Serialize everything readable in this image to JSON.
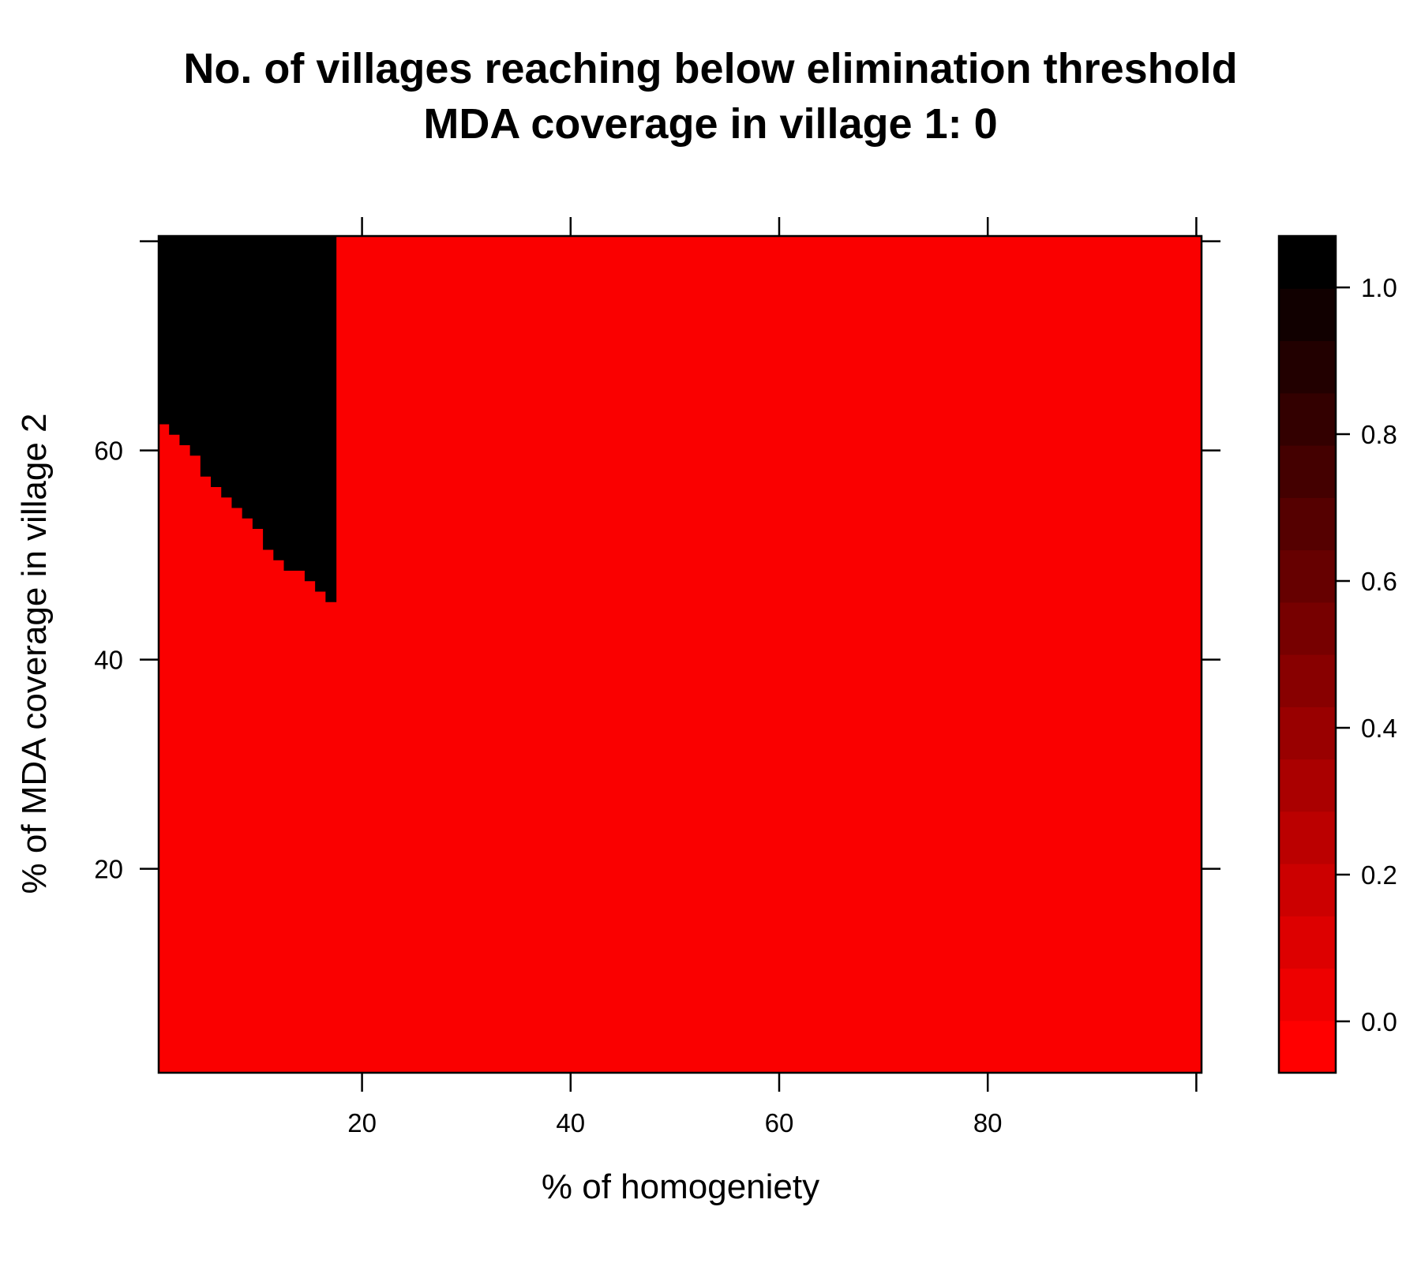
{
  "chart_data": {
    "type": "heatmap",
    "title": "No. of villages reaching below elimination threshold",
    "subtitle": "MDA coverage in village 1: 0",
    "xlabel": "% of homogeniety",
    "ylabel": "% of MDA coverage in village 2",
    "xlim": [
      1,
      100
    ],
    "ylim": [
      1,
      80
    ],
    "x_ticks": [
      20,
      40,
      60,
      80
    ],
    "y_ticks": [
      20,
      40,
      60
    ],
    "x_tick_labels": [
      "20",
      "40",
      "60",
      "80"
    ],
    "y_tick_labels": [
      "20",
      "40",
      "60"
    ],
    "colorbar": {
      "range": [
        -0.07,
        1.07
      ],
      "ticks": [
        0.0,
        0.2,
        0.4,
        0.6,
        0.8,
        1.0
      ],
      "tick_labels": [
        "0.0",
        "0.2",
        "0.4",
        "0.6",
        "0.8",
        "1.0"
      ],
      "levels": 16,
      "low_color": "#ff0000",
      "high_color": "#000000"
    },
    "value_low": 0,
    "value_high": 1,
    "region_value_1_boundary": {
      "homogeneity": [
        1,
        2,
        3,
        4,
        5,
        6,
        7,
        8,
        9,
        10,
        11,
        12,
        13,
        14,
        15,
        16,
        17
      ],
      "min_coverage": [
        63,
        62,
        61,
        60,
        58,
        57,
        56,
        55,
        54,
        53,
        51,
        50,
        49,
        49,
        48,
        47,
        46
      ]
    }
  }
}
